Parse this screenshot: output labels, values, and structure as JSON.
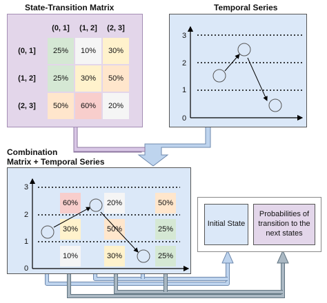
{
  "matrix": {
    "title": "State-Transition Matrix",
    "col_headers": [
      "(0, 1]",
      "(1, 2]",
      "(2, 3]"
    ],
    "row_headers": [
      "(0, 1]",
      "(1, 2]",
      "(2, 3]"
    ],
    "cells": [
      [
        {
          "v": "25%",
          "c": "#d5e8d4"
        },
        {
          "v": "10%",
          "c": "#f5f5f5"
        },
        {
          "v": "30%",
          "c": "#fff2cc"
        }
      ],
      [
        {
          "v": "25%",
          "c": "#d5e8d4"
        },
        {
          "v": "30%",
          "c": "#fff2cc"
        },
        {
          "v": "50%",
          "c": "#ffe6cc"
        }
      ],
      [
        {
          "v": "50%",
          "c": "#ffe6cc"
        },
        {
          "v": "60%",
          "c": "#f8cecc"
        },
        {
          "v": "20%",
          "c": "#f5f5f5"
        }
      ]
    ]
  },
  "series": {
    "title": "Temporal Series",
    "y_ticks": [
      "3",
      "2",
      "1",
      "0"
    ]
  },
  "combo": {
    "title_line1": "Combination",
    "title_line2": "Matrix + Temporal Series",
    "y_ticks": [
      "3",
      "2",
      "1",
      "0"
    ],
    "cells": [
      {
        "v": "60%",
        "c": "#f8cecc"
      },
      {
        "v": "20%",
        "c": "#f5f5f5"
      },
      {
        "v": "50%",
        "c": "#ffe6cc"
      },
      {
        "v": "30%",
        "c": "#fff2cc"
      },
      {
        "v": "50%",
        "c": "#ffe6cc"
      },
      {
        "v": "25%",
        "c": "#d5e8d4"
      },
      {
        "v": "10%",
        "c": "#f5f5f5"
      },
      {
        "v": "30%",
        "c": "#fff2cc"
      },
      {
        "v": "25%",
        "c": "#d5e8d4"
      }
    ]
  },
  "output": {
    "initial_state": "Initial State",
    "probabilities": "Probabilities of transition to the next states"
  }
}
